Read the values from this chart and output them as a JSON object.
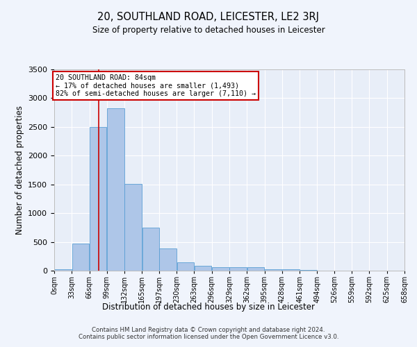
{
  "title": "20, SOUTHLAND ROAD, LEICESTER, LE2 3RJ",
  "subtitle": "Size of property relative to detached houses in Leicester",
  "xlabel": "Distribution of detached houses by size in Leicester",
  "ylabel": "Number of detached properties",
  "bin_edges": [
    0,
    33,
    66,
    99,
    132,
    165,
    197,
    230,
    263,
    296,
    329,
    362,
    395,
    428,
    461,
    494,
    526,
    559,
    592,
    625,
    658
  ],
  "bin_labels": [
    "0sqm",
    "33sqm",
    "66sqm",
    "99sqm",
    "132sqm",
    "165sqm",
    "197sqm",
    "230sqm",
    "263sqm",
    "296sqm",
    "329sqm",
    "362sqm",
    "395sqm",
    "428sqm",
    "461sqm",
    "494sqm",
    "526sqm",
    "559sqm",
    "592sqm",
    "625sqm",
    "658sqm"
  ],
  "bar_heights": [
    20,
    470,
    2500,
    2830,
    1510,
    750,
    385,
    140,
    80,
    55,
    55,
    55,
    30,
    20,
    10,
    5,
    5,
    5,
    3,
    2
  ],
  "bar_color": "#aec6e8",
  "bar_edge_color": "#5a9fd4",
  "bg_color": "#e8eef8",
  "grid_color": "#ffffff",
  "fig_bg_color": "#f0f4fc",
  "property_size": 84,
  "vline_color": "#cc0000",
  "annotation_text": "20 SOUTHLAND ROAD: 84sqm\n← 17% of detached houses are smaller (1,493)\n82% of semi-detached houses are larger (7,110) →",
  "annotation_box_color": "#ffffff",
  "annotation_box_edge": "#cc0000",
  "ylim": [
    0,
    3500
  ],
  "yticks": [
    0,
    500,
    1000,
    1500,
    2000,
    2500,
    3000,
    3500
  ],
  "footer1": "Contains HM Land Registry data © Crown copyright and database right 2024.",
  "footer2": "Contains public sector information licensed under the Open Government Licence v3.0."
}
